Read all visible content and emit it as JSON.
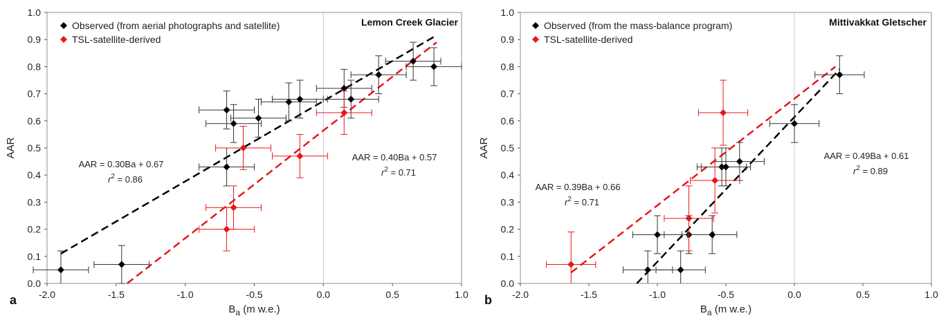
{
  "chart_data": [
    {
      "panel_label": "a",
      "type": "scatter",
      "title": "Lemon Creek Glacier",
      "xlabel_main": "B",
      "xlabel_sub": "a",
      "xlabel_units": " (m w.e.)",
      "ylabel": "AAR",
      "xlim": [
        -2.0,
        1.0
      ],
      "ylim": [
        0.0,
        1.0
      ],
      "x_ticks": [
        "-2.0",
        "-1.5",
        "-1.0",
        "-0.5",
        "0.0",
        "0.5",
        "1.0"
      ],
      "y_ticks": [
        "0.0",
        "0.1",
        "0.2",
        "0.3",
        "0.4",
        "0.5",
        "0.6",
        "0.7",
        "0.8",
        "0.9",
        "1.0"
      ],
      "vertical_line_x": 0.0,
      "legend_position": "top-left",
      "series": [
        {
          "name": "Observed (from aerial photographs and satellite)",
          "color": "#000000",
          "points": [
            {
              "x": -1.9,
              "y": 0.05,
              "xerr": 0.2,
              "yerr": 0.07
            },
            {
              "x": -1.46,
              "y": 0.07,
              "xerr": 0.2,
              "yerr": 0.07
            },
            {
              "x": -0.7,
              "y": 0.43,
              "xerr": 0.2,
              "yerr": 0.07
            },
            {
              "x": -0.7,
              "y": 0.64,
              "xerr": 0.2,
              "yerr": 0.07
            },
            {
              "x": -0.65,
              "y": 0.59,
              "xerr": 0.2,
              "yerr": 0.07
            },
            {
              "x": -0.47,
              "y": 0.61,
              "xerr": 0.2,
              "yerr": 0.07
            },
            {
              "x": -0.25,
              "y": 0.67,
              "xerr": 0.2,
              "yerr": 0.07
            },
            {
              "x": -0.17,
              "y": 0.68,
              "xerr": 0.2,
              "yerr": 0.07
            },
            {
              "x": 0.15,
              "y": 0.72,
              "xerr": 0.2,
              "yerr": 0.07
            },
            {
              "x": 0.2,
              "y": 0.68,
              "xerr": 0.2,
              "yerr": 0.07
            },
            {
              "x": 0.4,
              "y": 0.77,
              "xerr": 0.2,
              "yerr": 0.07
            },
            {
              "x": 0.65,
              "y": 0.82,
              "xerr": 0.2,
              "yerr": 0.07
            },
            {
              "x": 0.8,
              "y": 0.8,
              "xerr": 0.2,
              "yerr": 0.07
            }
          ],
          "fit": {
            "x": [
              -1.9,
              0.8
            ],
            "y": [
              0.11,
              0.91
            ]
          }
        },
        {
          "name": "TSL-satellite-derived",
          "color": "#e8161b",
          "points": [
            {
              "x": -0.7,
              "y": 0.2,
              "xerr": 0.2,
              "yerr": 0.08
            },
            {
              "x": -0.65,
              "y": 0.28,
              "xerr": 0.2,
              "yerr": 0.08
            },
            {
              "x": -0.58,
              "y": 0.5,
              "xerr": 0.2,
              "yerr": 0.08
            },
            {
              "x": -0.17,
              "y": 0.47,
              "xerr": 0.2,
              "yerr": 0.08
            },
            {
              "x": 0.15,
              "y": 0.63,
              "xerr": 0.2,
              "yerr": 0.08
            }
          ],
          "fit": {
            "x": [
              -1.42,
              0.82
            ],
            "y": [
              0.0,
              0.89
            ]
          }
        }
      ],
      "annotations": [
        {
          "id": "black-eq",
          "equation": "AAR = 0.30Ba + 0.67",
          "r2_label": "r",
          "r2_sup": "2",
          "r2_value": " = 0.86"
        },
        {
          "id": "red-eq",
          "equation": "AAR = 0.40Ba + 0.57",
          "r2_label": "r",
          "r2_sup": "2",
          "r2_value": " = 0.71"
        }
      ]
    },
    {
      "panel_label": "b",
      "type": "scatter",
      "title": "Mittivakkat Gletscher",
      "xlabel_main": "B",
      "xlabel_sub": "a",
      "xlabel_units": " (m w.e.)",
      "ylabel": "AAR",
      "xlim": [
        -2.0,
        1.0
      ],
      "ylim": [
        0.0,
        1.0
      ],
      "x_ticks": [
        "-2.0",
        "-1.5",
        "-1.0",
        "-0.5",
        "0.0",
        "0.5",
        "1.0"
      ],
      "y_ticks": [
        "0.0",
        "0.1",
        "0.2",
        "0.3",
        "0.4",
        "0.5",
        "0.6",
        "0.7",
        "0.8",
        "0.9",
        "1.0"
      ],
      "vertical_line_x": 0.0,
      "legend_position": "top-left",
      "series": [
        {
          "name": "Observed (from the mass-balance program)",
          "color": "#000000",
          "points": [
            {
              "x": -1.07,
              "y": 0.05,
              "xerr": 0.18,
              "yerr": 0.07
            },
            {
              "x": -0.83,
              "y": 0.05,
              "xerr": 0.18,
              "yerr": 0.07
            },
            {
              "x": -1.0,
              "y": 0.18,
              "xerr": 0.18,
              "yerr": 0.07
            },
            {
              "x": -0.77,
              "y": 0.18,
              "xerr": 0.18,
              "yerr": 0.07
            },
            {
              "x": -0.6,
              "y": 0.18,
              "xerr": 0.18,
              "yerr": 0.07
            },
            {
              "x": -0.53,
              "y": 0.43,
              "xerr": 0.18,
              "yerr": 0.07
            },
            {
              "x": -0.5,
              "y": 0.43,
              "xerr": 0.18,
              "yerr": 0.07
            },
            {
              "x": -0.4,
              "y": 0.45,
              "xerr": 0.18,
              "yerr": 0.07
            },
            {
              "x": 0.0,
              "y": 0.59,
              "xerr": 0.18,
              "yerr": 0.07
            },
            {
              "x": 0.33,
              "y": 0.77,
              "xerr": 0.18,
              "yerr": 0.07
            }
          ],
          "fit": {
            "x": [
              -1.15,
              0.33
            ],
            "y": [
              0.0,
              0.79
            ]
          }
        },
        {
          "name": "TSL-satellite-derived",
          "color": "#e8161b",
          "points": [
            {
              "x": -1.63,
              "y": 0.07,
              "xerr": 0.18,
              "yerr": 0.12
            },
            {
              "x": -0.77,
              "y": 0.24,
              "xerr": 0.18,
              "yerr": 0.12
            },
            {
              "x": -0.58,
              "y": 0.38,
              "xerr": 0.18,
              "yerr": 0.12
            },
            {
              "x": -0.52,
              "y": 0.63,
              "xerr": 0.18,
              "yerr": 0.12
            }
          ],
          "fit": {
            "x": [
              -1.63,
              0.3
            ],
            "y": [
              0.04,
              0.8
            ]
          }
        }
      ],
      "annotations": [
        {
          "id": "red-eq",
          "equation": "AAR = 0.39Ba + 0.66",
          "r2_label": "r",
          "r2_sup": "2",
          "r2_value": " = 0.71"
        },
        {
          "id": "black-eq",
          "equation": "AAR = 0.49Ba + 0.61",
          "r2_label": "r",
          "r2_sup": "2",
          "r2_value": " = 0.89"
        }
      ]
    }
  ]
}
